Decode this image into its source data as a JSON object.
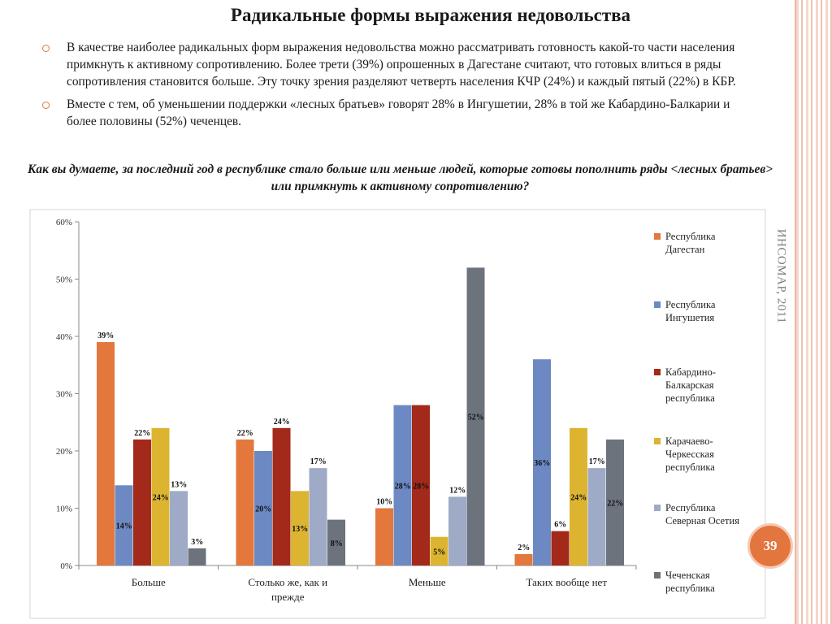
{
  "slide": {
    "title": "Радикальные формы выражения недовольства",
    "bullets": [
      "В качестве наиболее радикальных форм выражения недовольства можно рассматривать готовность какой-то части населения примкнуть к активному сопротивлению. Более трети (39%) опрошенных в Дагестане считают, что готовых влиться в ряды сопротивления становится больше. Эту точку зрения разделяют четверть населения КЧР (24%) и каждый пятый (22%) в КБР.",
      "Вместе с тем, об уменьшении поддержки «лесных братьев» говорят 28% в Ингушетии, 28% в той же Кабардино-Балкарии и более половины (52%) чеченцев."
    ],
    "question": "Как вы думаете, за последний год в республике стало больше или меньше людей, которые готовы пополнить ряды <лесных братьев> или примкнуть к активному сопротивлению?",
    "side_label": "ИНСОМАР, 2011",
    "page_number": "39",
    "colors": {
      "accent": "#e3753f",
      "bullet": "#e07b39",
      "stripe": "#f1c2b1"
    }
  },
  "chart_data": {
    "type": "bar",
    "categories": [
      "Больше",
      "Столько же, как и прежде",
      "Меньше",
      "Таких вообще нет"
    ],
    "category_labels": [
      [
        "Больше"
      ],
      [
        "Столько же, как и",
        "прежде"
      ],
      [
        "Меньше"
      ],
      [
        "Таких вообще нет"
      ]
    ],
    "ylim": [
      0,
      60
    ],
    "yticks": [
      0,
      10,
      20,
      30,
      40,
      50,
      60
    ],
    "ytick_labels": [
      "0%",
      "10%",
      "20%",
      "30%",
      "40%",
      "50%",
      "60%"
    ],
    "legend_position": "right",
    "grid": false,
    "series": [
      {
        "name": "Республика Дагестан",
        "legend_lines": [
          "Республика",
          "Дагестан"
        ],
        "color": "#e3773c",
        "values": [
          39,
          22,
          10,
          2
        ],
        "labels": [
          "39%",
          "22%",
          "10%",
          "2%"
        ]
      },
      {
        "name": "Республика Ингушетия",
        "legend_lines": [
          "Республика",
          "Ингушетия"
        ],
        "color": "#6d89c3",
        "values": [
          14,
          20,
          28,
          36
        ],
        "labels": [
          "14%",
          "20%",
          "28%",
          "36%"
        ]
      },
      {
        "name": "Кабардино-Балкарская республика",
        "legend_lines": [
          "Кабардино-",
          "Балкарская",
          "республика"
        ],
        "color": "#a3291a",
        "values": [
          22,
          24,
          28,
          6
        ],
        "labels": [
          "22%",
          "24%",
          "28%",
          "6%"
        ]
      },
      {
        "name": "Карачаево-Черкесская республика",
        "legend_lines": [
          "Карачаево-",
          "Черкесская",
          "республика"
        ],
        "color": "#dcb430",
        "values": [
          24,
          13,
          5,
          24
        ],
        "labels": [
          "24%",
          "13%",
          "5%",
          "24%"
        ]
      },
      {
        "name": "Республика Северная Осетия",
        "legend_lines": [
          "Республика",
          "Северная Осетия"
        ],
        "color": "#9eaac6",
        "values": [
          13,
          17,
          12,
          17
        ],
        "labels": [
          "13%",
          "17%",
          "12%",
          "17%"
        ]
      },
      {
        "name": "Чеченская республика",
        "legend_lines": [
          "Чеченская",
          "республика"
        ],
        "color": "#6c737c",
        "values": [
          3,
          8,
          52,
          22
        ],
        "labels": [
          "3%",
          "8%",
          "52%",
          "22%"
        ]
      }
    ]
  }
}
